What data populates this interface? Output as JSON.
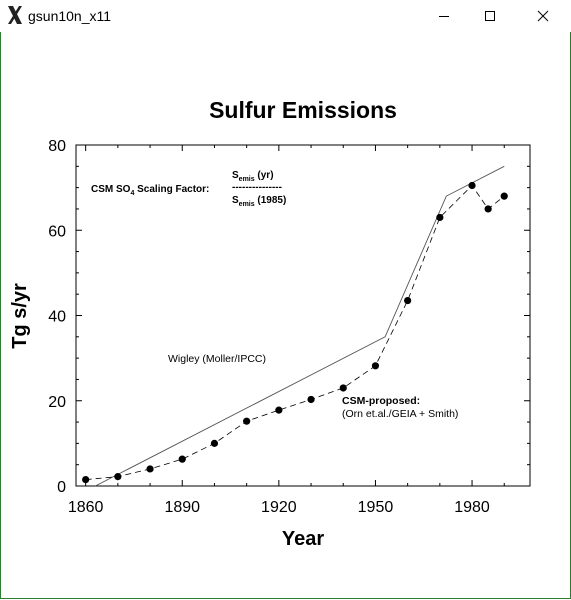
{
  "window": {
    "title": "gsun10n_x11",
    "icons": {
      "app": "x11-logo-icon",
      "minimize": "minimize-icon",
      "maximize": "maximize-icon",
      "close": "close-icon"
    }
  },
  "chart_data": {
    "type": "line",
    "title": "Sulfur Emissions",
    "xlabel": "Year",
    "ylabel": "Tg s/yr",
    "xlim": [
      1857,
      1998
    ],
    "ylim": [
      0,
      80
    ],
    "xticks": [
      1860,
      1890,
      1920,
      1950,
      1980
    ],
    "yticks": [
      0,
      20,
      40,
      60,
      80
    ],
    "grid": false,
    "annotations": {
      "scaling_label": "CSM SO",
      "scaling_sub": "4",
      "scaling_suffix": " Scaling Factor:",
      "num_main": "S",
      "num_sub": "emis",
      "num_tail": " (yr)",
      "dashes": "---------------",
      "den_main": "S",
      "den_sub": "emis",
      "den_tail": " (1985)"
    },
    "series": [
      {
        "name": "Wigley (Moller/IPCC)",
        "style": "solid",
        "color": "#555555",
        "x": [
          1863,
          1953,
          1972,
          1990
        ],
        "y": [
          0,
          35,
          68,
          75
        ]
      },
      {
        "name": "CSM-proposed:",
        "name2": "(Orn et.al./GEIA + Smith)",
        "style": "dashed-markers",
        "color": "#000000",
        "x": [
          1860,
          1870,
          1880,
          1890,
          1900,
          1910,
          1920,
          1930,
          1940,
          1950,
          1960,
          1970,
          1980,
          1985,
          1990
        ],
        "y": [
          1.5,
          2.2,
          4.0,
          6.3,
          10.0,
          15.2,
          17.8,
          20.3,
          23.0,
          28.2,
          43.5,
          63.0,
          70.5,
          65.0,
          68.0
        ]
      }
    ]
  }
}
